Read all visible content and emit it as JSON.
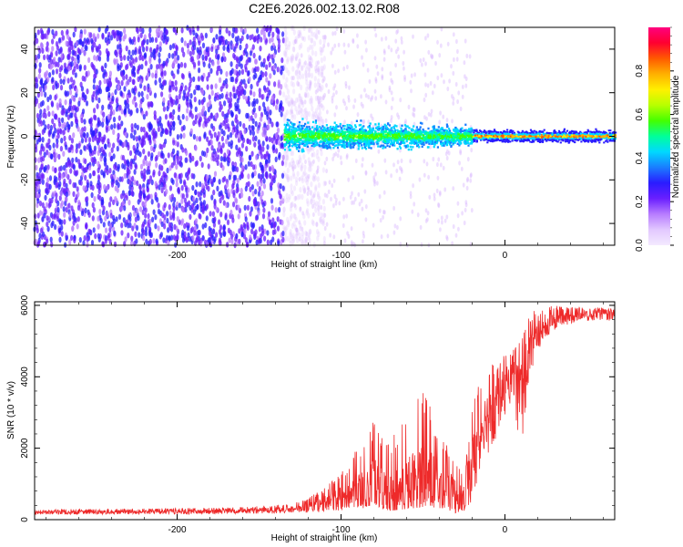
{
  "title": "C2E6.2026.002.13.02.R08",
  "chart_data": [
    {
      "type": "heatmap",
      "title": "C2E6.2026.002.13.02.R08",
      "xlabel": "Height of straight line (km)",
      "ylabel": "Frequency (Hz)",
      "xlim": [
        -287,
        67
      ],
      "ylim": [
        -50,
        50
      ],
      "xticks": [
        "-200",
        "-100",
        "0"
      ],
      "yticks": [
        "-40",
        "-20",
        "0",
        "20",
        "40"
      ],
      "colorbar": {
        "label": "Normalized spectral amplitude",
        "range": [
          0,
          1
        ],
        "ticks": [
          "0.0",
          "0.2",
          "0.4",
          "0.6",
          "0.8"
        ],
        "colors": [
          "#f4eaff",
          "#e2c8ff",
          "#b77cff",
          "#6a1fff",
          "#2a1cff",
          "#1a7dff",
          "#00d9ff",
          "#00ff9a",
          "#44ff00",
          "#b8ff00",
          "#fff000",
          "#ffb000",
          "#ff5a00",
          "#ff0030",
          "#ff007f"
        ]
      },
      "description_regions": [
        {
          "x_range": [
            -287,
            -135
          ],
          "freq_spread_hz": 50,
          "amplitude": 0.15
        },
        {
          "x_range": [
            -135,
            -20
          ],
          "freq_spread_hz": 6,
          "amplitude": 0.35
        },
        {
          "x_range": [
            -20,
            67
          ],
          "freq_spread_hz": 3,
          "amplitude": 0.8
        }
      ]
    },
    {
      "type": "line",
      "xlabel": "Height of straight line (km)",
      "ylabel": "SNR (10 * v/v)",
      "xlim": [
        -287,
        67
      ],
      "ylim": [
        0,
        6100
      ],
      "xticks": [
        "-200",
        "-100",
        "0"
      ],
      "yticks": [
        "0",
        "2000",
        "4000",
        "6000"
      ],
      "color": "#ee2a2a",
      "series": [
        {
          "name": "SNR",
          "x": [
            -287,
            -250,
            -200,
            -160,
            -130,
            -120,
            -110,
            -100,
            -90,
            -80,
            -70,
            -60,
            -50,
            -40,
            -30,
            -25,
            -20,
            -15,
            -10,
            -5,
            0,
            5,
            10,
            15,
            20,
            25,
            30,
            40,
            50,
            60,
            67
          ],
          "y": [
            220,
            220,
            230,
            250,
            300,
            350,
            450,
            600,
            800,
            1000,
            700,
            900,
            1300,
            1000,
            700,
            600,
            1500,
            2500,
            3000,
            3400,
            3700,
            4000,
            3600,
            4600,
            5200,
            5500,
            5600,
            5700,
            5750,
            5800,
            5750
          ],
          "y_max_envelope": [
            280,
            300,
            320,
            350,
            450,
            600,
            900,
            1300,
            2000,
            2800,
            2200,
            3000,
            3700,
            2500,
            1600,
            1200,
            3200,
            3900,
            4200,
            4500,
            4600,
            4800,
            5100,
            5800,
            5900,
            6000,
            6000,
            5950,
            5950,
            5950,
            5900
          ],
          "y_min_envelope": [
            140,
            150,
            150,
            160,
            180,
            200,
            220,
            250,
            300,
            350,
            250,
            300,
            350,
            200,
            150,
            150,
            500,
            1200,
            1800,
            2300,
            2800,
            3300,
            1800,
            3800,
            4700,
            5100,
            5300,
            5500,
            5550,
            5600,
            5550
          ]
        }
      ]
    }
  ]
}
